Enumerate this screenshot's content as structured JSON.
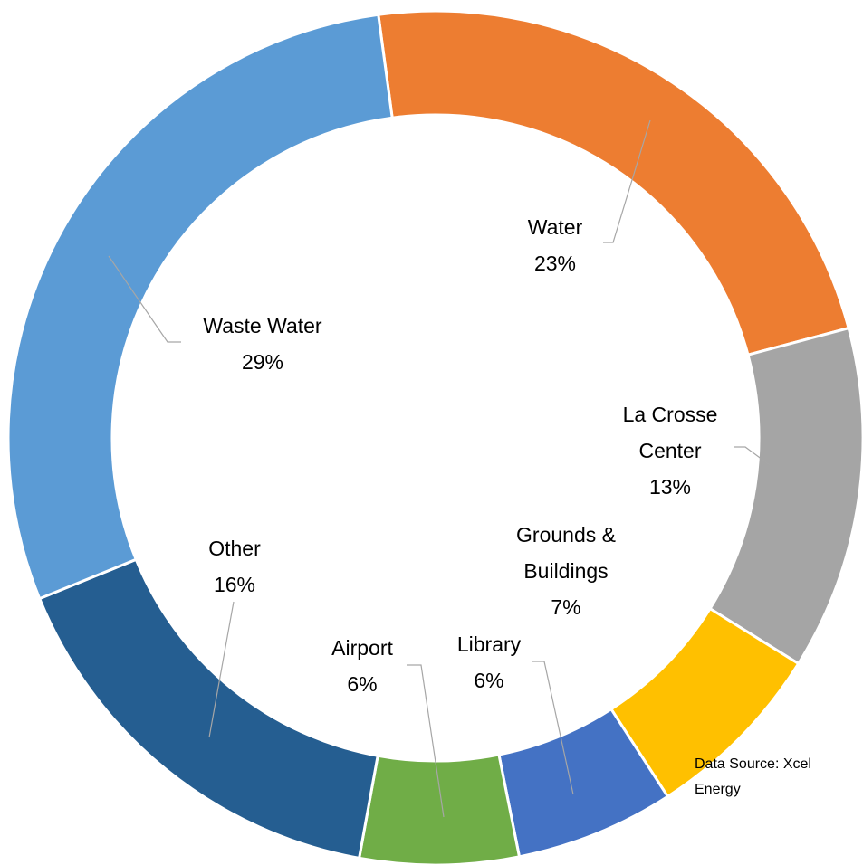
{
  "chart_data": {
    "type": "donut",
    "categories": [
      "Water",
      "La Crosse Center",
      "Grounds & Buildings",
      "Library",
      "Airport",
      "Other",
      "Waste Water"
    ],
    "values": [
      23,
      13,
      7,
      6,
      6,
      16,
      29
    ],
    "value_labels": [
      "23%",
      "13%",
      "7%",
      "6%",
      "6%",
      "16%",
      "29%"
    ],
    "colors": [
      "#ed7d31",
      "#a5a5a5",
      "#ffc000",
      "#4472c4",
      "#70ad47",
      "#255e91",
      "#5b9bd5"
    ],
    "source": "Data Source: Xcel Energy"
  }
}
